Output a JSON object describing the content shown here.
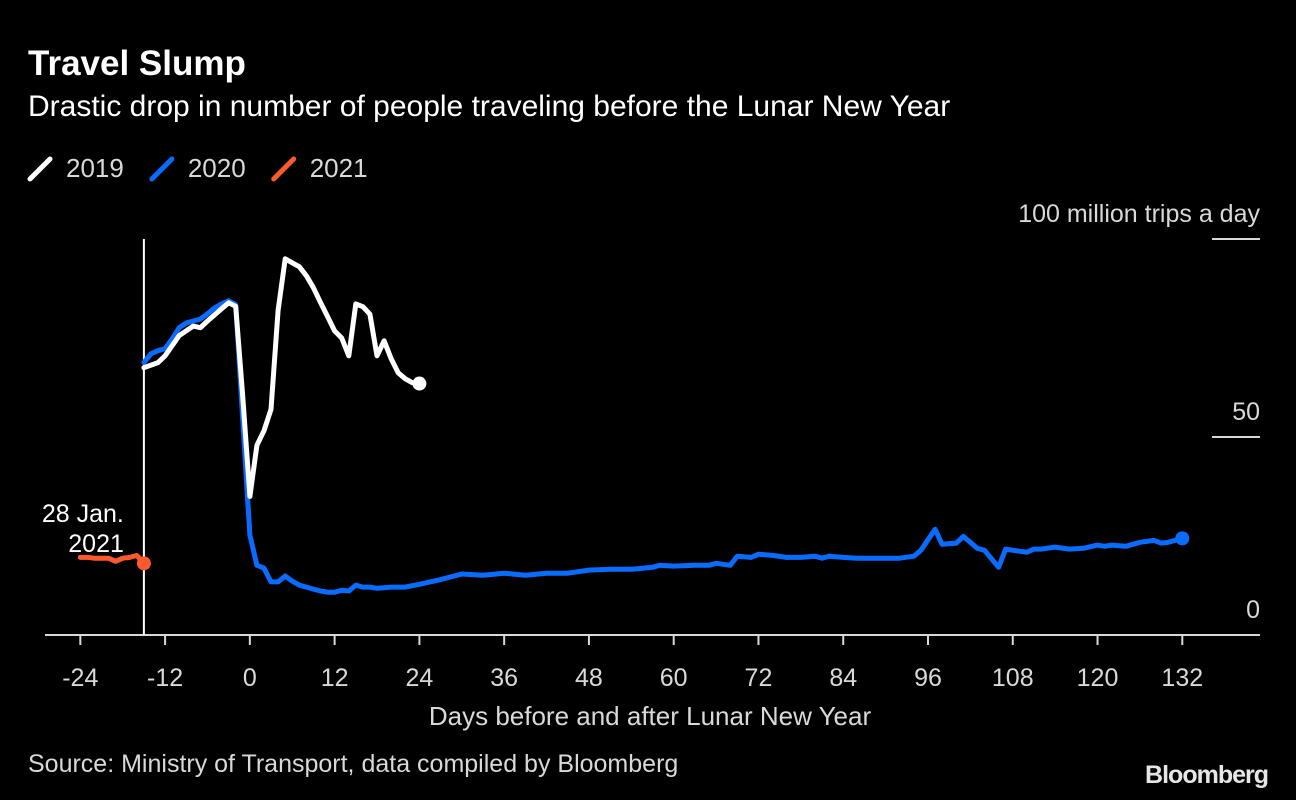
{
  "chart_data": {
    "type": "line",
    "title": "Travel Slump",
    "subtitle": "Drastic drop in number of people traveling before the Lunar New Year",
    "x_label": "Days before and after Lunar New Year",
    "source": "Source: Ministry of Transport, data compiled by Bloomberg",
    "brand": "Bloomberg",
    "xlim": [
      -29,
      143
    ],
    "xticks": [
      -24,
      -12,
      0,
      12,
      24,
      36,
      48,
      60,
      72,
      84,
      96,
      108,
      120,
      132
    ],
    "ylim": [
      0,
      100
    ],
    "yticks": [
      0,
      50,
      {
        "value": 100,
        "label": "100 million trips a day"
      }
    ],
    "annotation": {
      "text": [
        "28 Jan.",
        "2021"
      ],
      "x": -15
    },
    "legend": "top-left",
    "series": [
      {
        "name": "2019",
        "color": "#ffffff",
        "x": [
          -15,
          -13,
          -12,
          -10,
          -8,
          -7,
          -6,
          -4,
          -3,
          -2,
          -1,
          0,
          1,
          2,
          3,
          4,
          5,
          6,
          7,
          8,
          9,
          10,
          11,
          12,
          13,
          14,
          15,
          16,
          17,
          18,
          19,
          20,
          21,
          22,
          23,
          24
        ],
        "values": [
          67.5,
          68.8,
          70.5,
          75.6,
          78,
          77.6,
          79.3,
          82.4,
          83.9,
          83,
          60,
          35,
          47.9,
          51.6,
          57,
          82,
          95,
          94,
          93,
          90.7,
          87.7,
          84,
          80.4,
          76.8,
          75,
          70.5,
          83.6,
          82.9,
          81,
          70.5,
          74.3,
          69.8,
          66.2,
          64.7,
          63.7,
          63.5
        ]
      },
      {
        "name": "2020",
        "color": "#0a6cff",
        "x": [
          -15,
          -14,
          -13,
          -12,
          -11,
          -10,
          -9,
          -8,
          -7,
          -6,
          -5,
          -4,
          -3,
          -2,
          -1,
          0,
          1,
          2,
          3,
          4,
          5,
          6,
          7,
          8,
          9,
          10,
          11,
          12,
          13,
          14,
          15,
          16,
          17,
          18,
          20,
          22,
          24,
          27,
          30,
          33,
          36,
          39,
          42,
          45,
          48,
          51,
          54,
          57,
          58,
          60,
          63,
          65,
          66,
          68,
          69,
          71,
          72,
          74,
          76,
          78,
          80,
          81,
          82,
          84,
          86,
          88,
          90,
          92,
          94,
          95,
          97,
          98,
          100,
          101,
          103,
          104,
          106,
          107,
          108,
          110,
          111,
          112,
          114,
          116,
          118,
          120,
          121,
          122,
          124,
          126,
          128,
          129,
          130,
          132
        ],
        "values": [
          68.8,
          71,
          71.8,
          72.3,
          74.8,
          77.6,
          78.8,
          79.3,
          79.8,
          81.1,
          82.6,
          83.6,
          84.4,
          83.4,
          54,
          25.2,
          17.6,
          16.9,
          13.4,
          13.4,
          14.9,
          13.6,
          12.6,
          12.1,
          11.6,
          11.1,
          10.8,
          10.8,
          11.3,
          11.1,
          12.6,
          12.1,
          12.1,
          11.8,
          12.1,
          12.1,
          12.8,
          14,
          15.4,
          15.1,
          15.6,
          15.1,
          15.6,
          15.6,
          16.4,
          16.6,
          16.6,
          17.1,
          17.6,
          17.4,
          17.6,
          17.6,
          18.1,
          17.6,
          19.9,
          19.6,
          20.4,
          20.1,
          19.6,
          19.6,
          19.9,
          19.4,
          19.9,
          19.6,
          19.4,
          19.4,
          19.4,
          19.4,
          19.9,
          21.4,
          26.7,
          22.9,
          23.2,
          24.9,
          21.9,
          21.4,
          17.1,
          21.7,
          21.4,
          20.9,
          21.7,
          21.7,
          22.2,
          21.7,
          21.9,
          22.7,
          22.4,
          22.7,
          22.4,
          23.4,
          23.9,
          23.2,
          23.4,
          24.4
        ]
      },
      {
        "name": "2021",
        "color": "#ff5a2e",
        "x": [
          -24,
          -23,
          -22,
          -21,
          -20,
          -19,
          -18,
          -17,
          -16,
          -15
        ],
        "values": [
          19.6,
          19.6,
          19.4,
          19.4,
          19.4,
          18.6,
          19.4,
          19.6,
          20.1,
          18.1
        ]
      }
    ]
  }
}
